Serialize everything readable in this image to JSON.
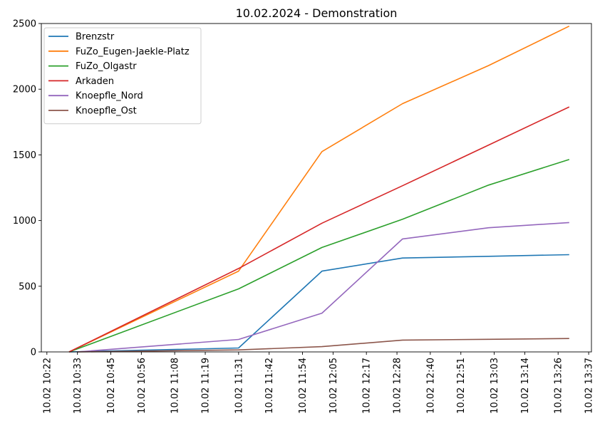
{
  "chart_data": {
    "type": "line",
    "title": "10.02.2024 - Demonstration",
    "xlabel": "",
    "ylabel": "",
    "xlim": [
      "2024-02-10 10:20",
      "2024-02-10 13:38"
    ],
    "ylim": [
      0,
      2500
    ],
    "x_ticks": [
      "10.02 10:22",
      "10.02 10:33",
      "10.02 10:45",
      "10.02 10:56",
      "10.02 11:08",
      "10.02 11:19",
      "10.02 11:31",
      "10.02 11:42",
      "10.02 11:54",
      "10.02 12:05",
      "10.02 12:17",
      "10.02 12:28",
      "10.02 12:40",
      "10.02 12:51",
      "10.02 13:03",
      "10.02 13:14",
      "10.02 13:26",
      "10.02 13:37"
    ],
    "x_tick_values": [
      "2024-02-10 10:22",
      "2024-02-10 10:33",
      "2024-02-10 10:45",
      "2024-02-10 10:56",
      "2024-02-10 11:08",
      "2024-02-10 11:19",
      "2024-02-10 11:31",
      "2024-02-10 11:42",
      "2024-02-10 11:54",
      "2024-02-10 12:05",
      "2024-02-10 12:17",
      "2024-02-10 12:28",
      "2024-02-10 12:40",
      "2024-02-10 12:51",
      "2024-02-10 13:03",
      "2024-02-10 13:14",
      "2024-02-10 13:26",
      "2024-02-10 13:37"
    ],
    "y_ticks": [
      "0",
      "500",
      "1000",
      "1500",
      "2000",
      "2500"
    ],
    "y_tick_values": [
      0,
      500,
      1000,
      1500,
      2000,
      2500
    ],
    "legend_position": "top-left",
    "grid": false,
    "series": [
      {
        "name": "Brenzstr",
        "color": "#1f77b4",
        "points": [
          [
            "2024-02-10 10:30",
            0
          ],
          [
            "2024-02-10 11:31",
            30
          ],
          [
            "2024-02-10 12:01",
            615
          ],
          [
            "2024-02-10 12:30",
            715
          ],
          [
            "2024-02-10 13:01",
            728
          ],
          [
            "2024-02-10 13:30",
            740
          ]
        ]
      },
      {
        "name": "FuZo_Eugen-Jaekle-Platz",
        "color": "#ff7f0e",
        "points": [
          [
            "2024-02-10 10:30",
            0
          ],
          [
            "2024-02-10 11:31",
            615
          ],
          [
            "2024-02-10 12:01",
            1525
          ],
          [
            "2024-02-10 12:30",
            1890
          ],
          [
            "2024-02-10 13:01",
            2180
          ],
          [
            "2024-02-10 13:30",
            2480
          ]
        ]
      },
      {
        "name": "FuZo_Olgastr",
        "color": "#2ca02c",
        "points": [
          [
            "2024-02-10 10:30",
            0
          ],
          [
            "2024-02-10 11:31",
            480
          ],
          [
            "2024-02-10 12:01",
            795
          ],
          [
            "2024-02-10 12:30",
            1010
          ],
          [
            "2024-02-10 13:01",
            1270
          ],
          [
            "2024-02-10 13:30",
            1465
          ]
        ]
      },
      {
        "name": "Arkaden",
        "color": "#d62728",
        "points": [
          [
            "2024-02-10 10:30",
            0
          ],
          [
            "2024-02-10 11:31",
            635
          ],
          [
            "2024-02-10 12:01",
            980
          ],
          [
            "2024-02-10 12:30",
            1265
          ],
          [
            "2024-02-10 13:01",
            1575
          ],
          [
            "2024-02-10 13:30",
            1865
          ]
        ]
      },
      {
        "name": "Knoepfle_Nord",
        "color": "#9467bd",
        "points": [
          [
            "2024-02-10 10:33",
            0
          ],
          [
            "2024-02-10 11:31",
            95
          ],
          [
            "2024-02-10 12:01",
            295
          ],
          [
            "2024-02-10 12:30",
            860
          ],
          [
            "2024-02-10 13:01",
            945
          ],
          [
            "2024-02-10 13:30",
            985
          ]
        ]
      },
      {
        "name": "Knoepfle_Ost",
        "color": "#8c564b",
        "points": [
          [
            "2024-02-10 10:33",
            0
          ],
          [
            "2024-02-10 11:31",
            15
          ],
          [
            "2024-02-10 12:01",
            40
          ],
          [
            "2024-02-10 12:30",
            90
          ],
          [
            "2024-02-10 13:01",
            96
          ],
          [
            "2024-02-10 13:30",
            102
          ]
        ]
      }
    ]
  }
}
